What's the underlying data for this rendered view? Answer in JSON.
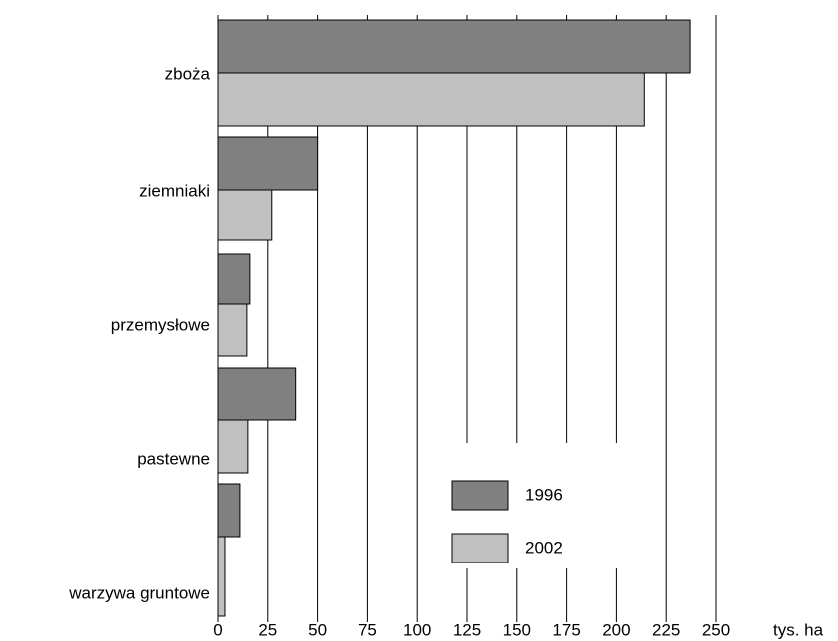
{
  "chart_data": {
    "type": "barh",
    "categories": [
      "zboża",
      "ziemniaki",
      "przemysłowe",
      "pastewne",
      "warzywa gruntowe"
    ],
    "series": [
      {
        "name": "1996",
        "color": "#808080",
        "values": [
          237,
          50,
          16,
          39,
          11
        ]
      },
      {
        "name": "2002",
        "color": "#c0c0c0",
        "values": [
          214,
          27,
          14.5,
          15,
          3.5
        ]
      }
    ],
    "x_label": "tys. ha",
    "xlim": [
      0,
      250
    ],
    "xticks": [
      0,
      25,
      50,
      75,
      100,
      125,
      150,
      175,
      200,
      225,
      250
    ],
    "grid": true,
    "legend": "lower right"
  }
}
